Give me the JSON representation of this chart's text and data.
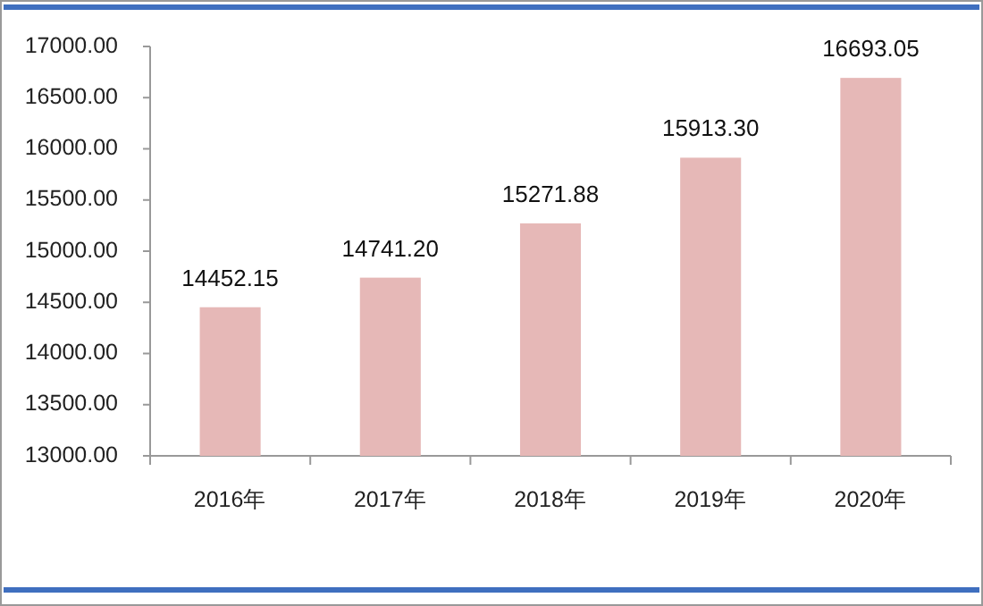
{
  "chart_data": {
    "type": "bar",
    "categories": [
      "2016年",
      "2017年",
      "2018年",
      "2019年",
      "2020年"
    ],
    "values": [
      14452.15,
      14741.2,
      15271.88,
      15913.3,
      16693.05
    ],
    "value_labels": [
      "14452.15",
      "14741.20",
      "15271.88",
      "15913.30",
      "16693.05"
    ],
    "color": "#e6b8b7",
    "ylim": [
      13000,
      17000
    ],
    "yticks": [
      {
        "value": 13000,
        "label": "13000.00"
      },
      {
        "value": 13500,
        "label": "13500.00"
      },
      {
        "value": 14000,
        "label": "14000.00"
      },
      {
        "value": 14500,
        "label": "14500.00"
      },
      {
        "value": 15000,
        "label": "15000.00"
      },
      {
        "value": 15500,
        "label": "15500.00"
      },
      {
        "value": 16000,
        "label": "16000.00"
      },
      {
        "value": 16500,
        "label": "16500.00"
      },
      {
        "value": 17000,
        "label": "17000.00"
      }
    ]
  }
}
